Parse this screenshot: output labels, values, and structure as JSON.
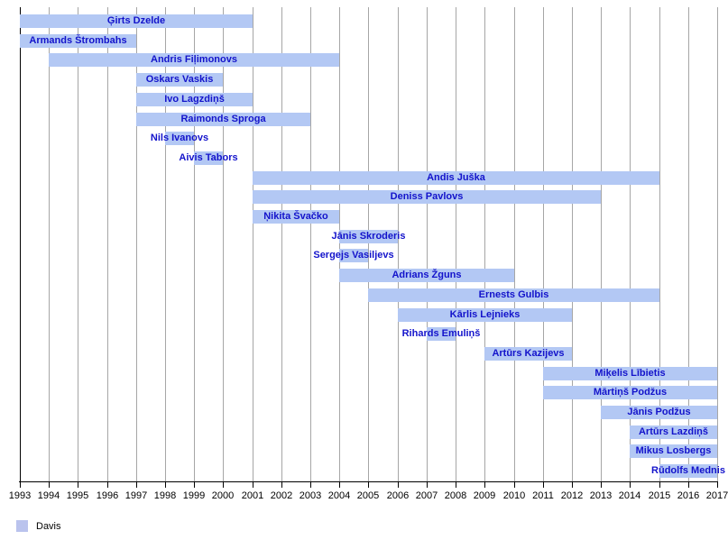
{
  "chart_data": {
    "type": "gantt",
    "title": "",
    "unit": "year",
    "x_axis": {
      "min": 1993,
      "max": 2017,
      "tick_step": 1,
      "tick_labels": [
        "1993",
        "1994",
        "1995",
        "1996",
        "1997",
        "1998",
        "1999",
        "2000",
        "2001",
        "2002",
        "2003",
        "2004",
        "2005",
        "2006",
        "2007",
        "2008",
        "2009",
        "2010",
        "2011",
        "2012",
        "2013",
        "2014",
        "2015",
        "2016",
        "2017"
      ],
      "grid": true
    },
    "legend": {
      "label": "Davis",
      "position": "bottom-left"
    },
    "bars": [
      {
        "name": "Ģirts Dzelde",
        "start": 1993,
        "end": 2001
      },
      {
        "name": "Armands Štrombahs",
        "start": 1993,
        "end": 1997
      },
      {
        "name": "Andris Fiļimonovs",
        "start": 1994,
        "end": 2004
      },
      {
        "name": "Oskars Vaskis",
        "start": 1997,
        "end": 2000
      },
      {
        "name": "Ivo Lagzdiņš",
        "start": 1997,
        "end": 2001
      },
      {
        "name": "Raimonds Sproga",
        "start": 1997,
        "end": 2003
      },
      {
        "name": "Nils Ivanovs",
        "start": 1998,
        "end": 1999
      },
      {
        "name": "Aivis Tabors",
        "start": 1999,
        "end": 2000
      },
      {
        "name": "Andis Juška",
        "start": 2001,
        "end": 2015
      },
      {
        "name": "Deniss Pavlovs",
        "start": 2001,
        "end": 2013
      },
      {
        "name": "Ņikita Švačko",
        "start": 2001,
        "end": 2004
      },
      {
        "name": "Jānis Skroderis",
        "start": 2004,
        "end": 2006
      },
      {
        "name": "Sergejs Vasiljevs",
        "start": 2004,
        "end": 2005
      },
      {
        "name": "Adrians Žguns",
        "start": 2004,
        "end": 2010
      },
      {
        "name": "Ernests Gulbis",
        "start": 2005,
        "end": 2015
      },
      {
        "name": "Kārlis Lejnieks",
        "start": 2006,
        "end": 2012
      },
      {
        "name": "Rihards Emuliņš",
        "start": 2007,
        "end": 2008
      },
      {
        "name": "Artūrs Kazijevs",
        "start": 2009,
        "end": 2012
      },
      {
        "name": "Miķelis Lībietis",
        "start": 2011,
        "end": 2017
      },
      {
        "name": "Mārtiņš Podžus",
        "start": 2011,
        "end": 2017
      },
      {
        "name": "Jānis Podžus",
        "start": 2013,
        "end": 2017
      },
      {
        "name": "Artūrs Lazdiņš",
        "start": 2014,
        "end": 2017
      },
      {
        "name": "Mikus Losbergs",
        "start": 2014,
        "end": 2017
      },
      {
        "name": "Rūdolfs Mednis",
        "start": 2015,
        "end": 2017
      }
    ],
    "colors": {
      "bar": "#b3c8f4",
      "bar_label": "#1313cb",
      "gridline": "#a6a6a6",
      "axis": "#000000",
      "legend_swatch": "#bac3ed",
      "background": "#ffffff"
    }
  }
}
